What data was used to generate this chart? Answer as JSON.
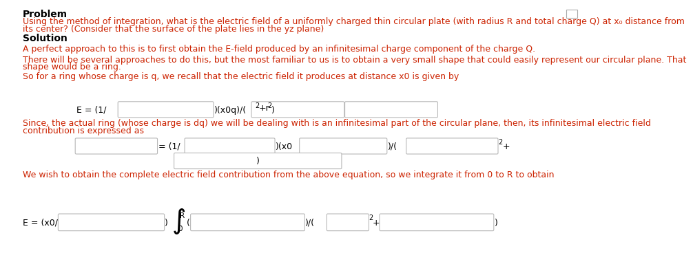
{
  "bg_color": "#ffffff",
  "black": "#000000",
  "red": "#cc2200",
  "gray_box": "#c8c8c8",
  "problem_label": "Problem",
  "problem_line1": "Using the method of integration, what is the electric field of a uniformly charged thin circular plate (with radius R and total charge Q) at x₀ distance from",
  "problem_line2": "its center? (Consider that the surface of the plate lies in the yz plane)",
  "solution_label": "Solution",
  "para1": "A perfect approach to this is to first obtain the E-field produced by an infinitesimal charge component of the charge Q.",
  "para2a": "There will be several approaches to do this, but the most familiar to us is to obtain a very small shape that could easily represent our circular plane. That",
  "para2b": "shape would be a ring.",
  "para3": "So for a ring whose charge is q, we recall that the electric field it produces at distance x0 is given by",
  "eq1_left": "E = (1/",
  "eq1_mid": ")(x0q)/(",
  "eq1_sup1": "2",
  "eq1_mid2": "+r",
  "eq1_sup2": "2",
  "eq1_end": ")",
  "para4a": "Since, the actual ring (whose charge is dq) we will be dealing with is an infinitesimal part of the circular plane, then, its infinitesimal electric field",
  "para4b": "contribution is expressed as",
  "eq2_t1": "= (1/",
  "eq2_t2": ")(x0",
  "eq2_t3": ")/(",
  "eq2_sup": "2",
  "eq2_plus": "+",
  "eq2_row2": ")",
  "para5": "We wish to obtain the complete electric field contribution from the above equation, so we integrate it from 0 to R to obtain",
  "eq3_left": "E = (x0/",
  "eq3_rparen": ")",
  "eq3_int_upper": "R",
  "eq3_int_lower": "0",
  "eq3_lparen": "(",
  "eq3_mid": ")/(",
  "eq3_sup": "2",
  "eq3_plus": "+",
  "eq3_end": ")"
}
